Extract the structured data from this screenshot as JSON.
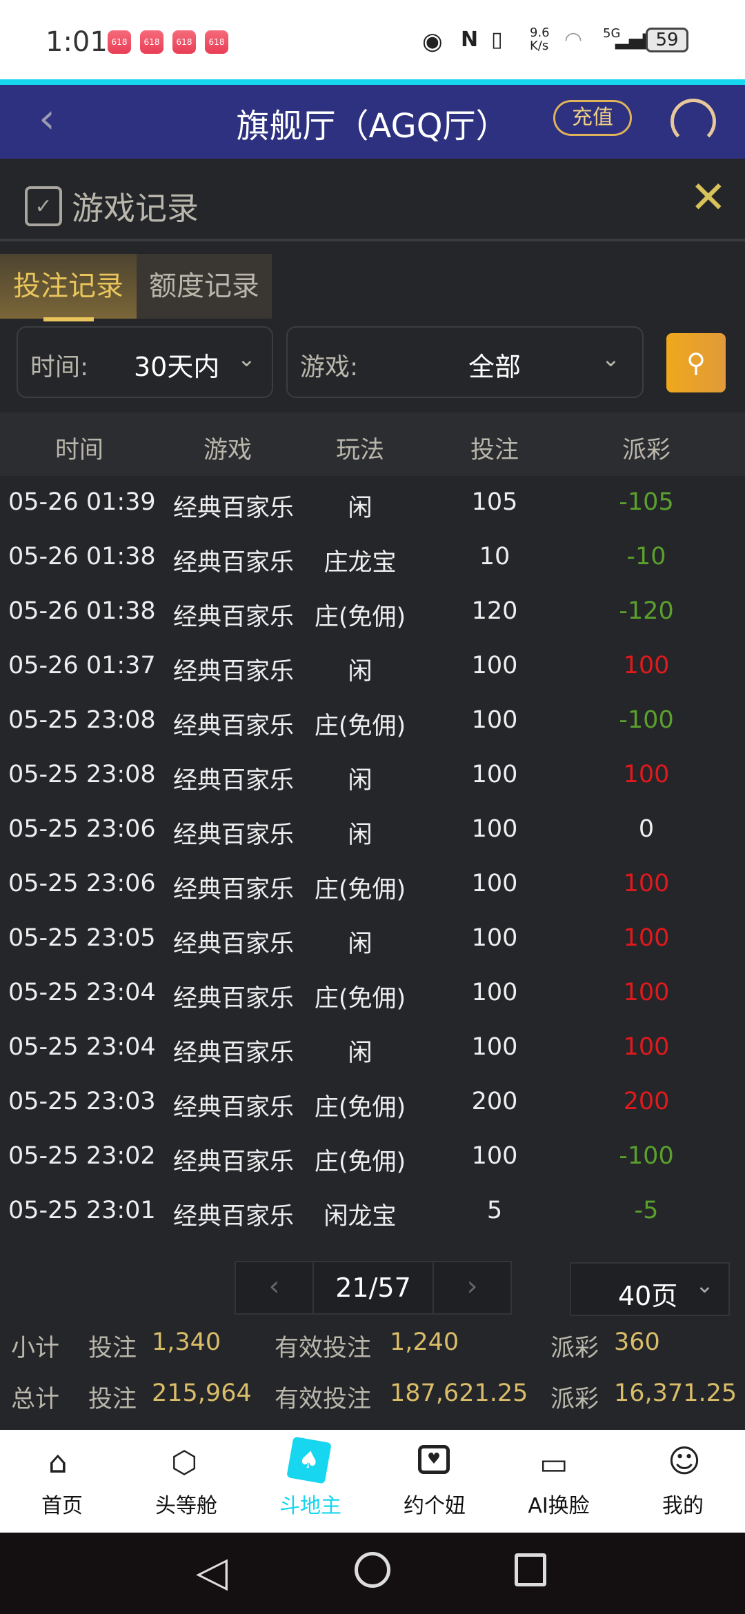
{
  "status_bar": {
    "time": "1:01",
    "app_badge": "618",
    "net_speed": "9.6\nK/s",
    "network": "5G",
    "battery": "59"
  },
  "header": {
    "title": "旗舰厅（AGQ厅）",
    "recharge": "充值",
    "back_icon": "chevron-left-icon",
    "support_icon": "headset-icon"
  },
  "panel": {
    "title": "游戏记录"
  },
  "tabs": [
    {
      "label": "投注记录",
      "active": true
    },
    {
      "label": "额度记录",
      "active": false
    }
  ],
  "filters": {
    "time_label": "时间:",
    "time_value": "30天内",
    "game_label": "游戏:",
    "game_value": "全部"
  },
  "table": {
    "columns": [
      "时间",
      "游戏",
      "玩法",
      "投注",
      "派彩"
    ],
    "rows": [
      [
        "05-26 01:39",
        "经典百家乐",
        "闲",
        "105",
        "-105"
      ],
      [
        "05-26 01:38",
        "经典百家乐",
        "庄龙宝",
        "10",
        "-10"
      ],
      [
        "05-26 01:38",
        "经典百家乐",
        "庄(免佣)",
        "120",
        "-120"
      ],
      [
        "05-26 01:37",
        "经典百家乐",
        "闲",
        "100",
        "100"
      ],
      [
        "05-25 23:08",
        "经典百家乐",
        "庄(免佣)",
        "100",
        "-100"
      ],
      [
        "05-25 23:08",
        "经典百家乐",
        "闲",
        "100",
        "100"
      ],
      [
        "05-25 23:06",
        "经典百家乐",
        "闲",
        "100",
        "0"
      ],
      [
        "05-25 23:06",
        "经典百家乐",
        "庄(免佣)",
        "100",
        "100"
      ],
      [
        "05-25 23:05",
        "经典百家乐",
        "闲",
        "100",
        "100"
      ],
      [
        "05-25 23:04",
        "经典百家乐",
        "庄(免佣)",
        "100",
        "100"
      ],
      [
        "05-25 23:04",
        "经典百家乐",
        "闲",
        "100",
        "100"
      ],
      [
        "05-25 23:03",
        "经典百家乐",
        "庄(免佣)",
        "200",
        "200"
      ],
      [
        "05-25 23:02",
        "经典百家乐",
        "庄(免佣)",
        "100",
        "-100"
      ],
      [
        "05-25 23:01",
        "经典百家乐",
        "闲龙宝",
        "5",
        "-5"
      ]
    ]
  },
  "pagination": {
    "current": "21/57",
    "page_size": "40页"
  },
  "subtotal": {
    "label": "小计",
    "bet_label": "投注",
    "bet": "1,340",
    "valid_label": "有效投注",
    "valid": "1,240",
    "payout_label": "派彩",
    "payout": "360"
  },
  "total": {
    "label": "总计",
    "bet_label": "投注",
    "bet": "215,964",
    "valid_label": "有效投注",
    "valid": "187,621.25",
    "payout_label": "派彩",
    "payout": "16,371.25"
  },
  "bottom_nav": [
    {
      "label": "首页"
    },
    {
      "label": "头等舱"
    },
    {
      "label": "斗地主",
      "active": true
    },
    {
      "label": "约个妞"
    },
    {
      "label": "AI换脸"
    },
    {
      "label": "我的"
    }
  ],
  "colors": {
    "positive": "#e0191c",
    "negative": "#5aa02c",
    "accent": "#d9bd68",
    "active_nav": "#17d6ef",
    "header_bg": "#2e3180"
  }
}
